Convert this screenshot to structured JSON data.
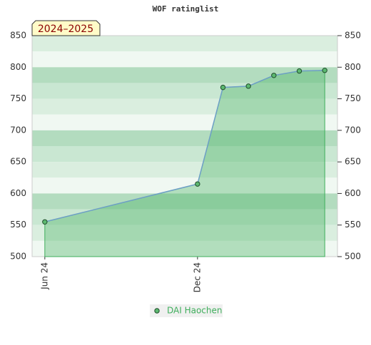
{
  "chart_data": {
    "type": "area",
    "title": "WOF ratinglist",
    "badge": "2024–2025",
    "x": [
      0,
      6,
      7,
      8,
      9,
      10,
      11
    ],
    "xlim": [
      -0.5,
      11.5
    ],
    "xticks": [
      {
        "value": 0,
        "label": "Jun 24"
      },
      {
        "value": 6,
        "label": "Dec 24"
      }
    ],
    "series": [
      {
        "name": "DAI Haochen",
        "color": "#3fae5c",
        "values": [
          555,
          615,
          768,
          770,
          787,
          794,
          795
        ]
      }
    ],
    "ylim": [
      500,
      850
    ],
    "yticks": [
      500,
      550,
      600,
      650,
      700,
      750,
      800,
      850
    ],
    "y2lim": [
      500,
      850
    ],
    "y2ticks": [
      500,
      550,
      600,
      650,
      700,
      750,
      800,
      850
    ],
    "grid": true
  }
}
